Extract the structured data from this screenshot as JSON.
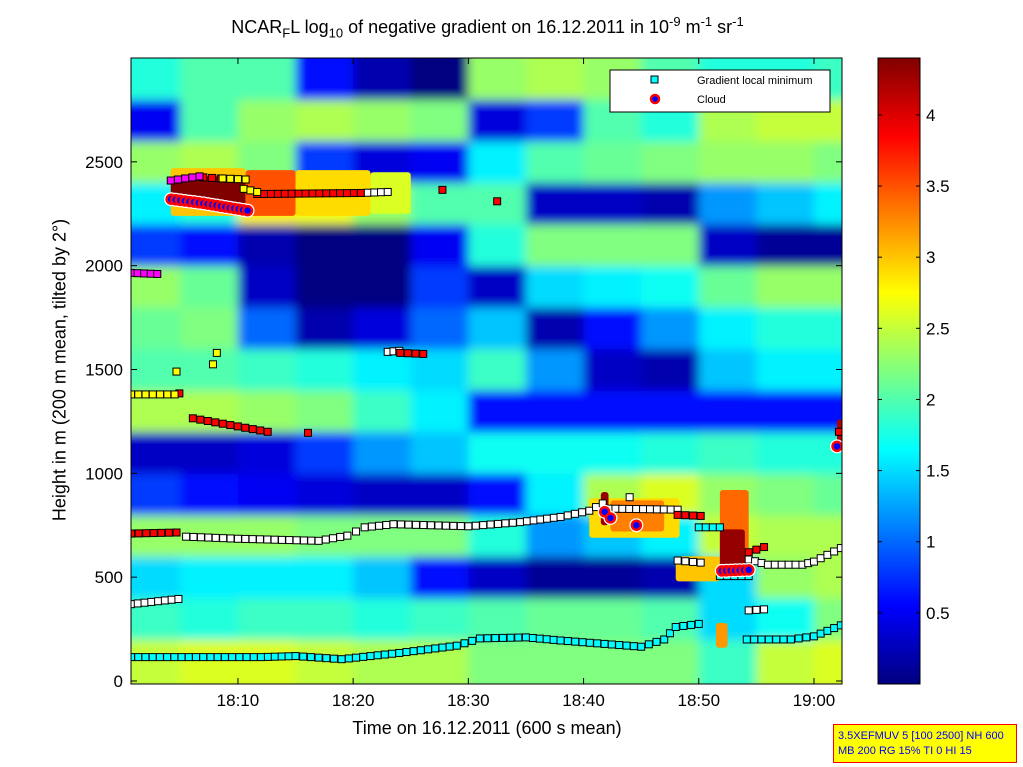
{
  "title": {
    "p1": "NCAR",
    "sub1": "F",
    "p2": "L log",
    "sub2": "10",
    "p3": " of negative gradient on 16.12.2011 in 10",
    "sup1": "-9",
    "p4": " m",
    "sup2": "-1",
    "p5": " sr",
    "sup3": "-1"
  },
  "info_box": {
    "line1": "3.5XEFMUV 5 [100 2500] NH 600",
    "line2": "MB 200 RG 15% TI 0 HI 15",
    "background": "#ffff00",
    "border": "#ff0000",
    "text_color": "#0000ff"
  },
  "chart_data": {
    "type": "heatmap",
    "colormap": "jet",
    "xlabel": "Time on 16.12.2011 (600 s mean)",
    "ylabel": "Height in m (200 m mean, tilted by 2°)",
    "xlim": [
      "18:00:43",
      "19:02:26"
    ],
    "ylim": [
      0,
      3000
    ],
    "clim": [
      0,
      4.4
    ],
    "xticks": [
      "18:10",
      "18:20",
      "18:30",
      "18:40",
      "18:50",
      "19:00"
    ],
    "yticks": [
      0,
      500,
      1000,
      1500,
      2000,
      2500
    ],
    "colorbar_ticks": [
      0.5,
      1,
      1.5,
      2,
      2.5,
      3,
      3.5,
      4
    ],
    "legend": {
      "position": "top-right",
      "entries": [
        {
          "label": "Gradient local minimum",
          "marker": "square",
          "color": "#00ffff"
        },
        {
          "label": "Cloud",
          "marker": "circle",
          "color": "#ff0000",
          "fill": "#0000ff"
        }
      ]
    },
    "heatmap": {
      "column_starts": [
        "18:00",
        "18:05",
        "18:10",
        "18:15",
        "18:20",
        "18:25",
        "18:30",
        "18:35",
        "18:40",
        "18:45",
        "18:50",
        "18:55",
        "19:00"
      ],
      "column_minutes": 5,
      "row_edges_m": [
        0,
        200,
        400,
        600,
        800,
        1000,
        1200,
        1400,
        1600,
        1800,
        2000,
        2200,
        2400,
        2600,
        2800,
        3000
      ],
      "values": [
        [
          2.5,
          1.9,
          1.5,
          2.3,
          0.8,
          0.3,
          2.4,
          2.0,
          2.1,
          2.3,
          0.8,
          1.6,
          2.3,
          0.5,
          1.8
        ],
        [
          2.6,
          1.8,
          1.6,
          2.3,
          0.6,
          0.3,
          2.4,
          2.0,
          2.2,
          2.1,
          0.6,
          1.8,
          2.4,
          2.0,
          2.0
        ],
        [
          2.6,
          1.9,
          1.6,
          2.3,
          0.5,
          0.4,
          2.3,
          1.9,
          1.0,
          0.3,
          0.2,
          2.8,
          2.2,
          2.3,
          2.0
        ],
        [
          2.5,
          1.9,
          1.6,
          2.2,
          0.4,
          0.8,
          2.2,
          1.8,
          0.2,
          0.0,
          0.0,
          2.7,
          0.8,
          2.4,
          0.6
        ],
        [
          2.4,
          1.8,
          1.4,
          2.2,
          0.3,
          1.2,
          1.9,
          1.6,
          0.4,
          0.0,
          0.0,
          2.3,
          0.4,
          2.3,
          0.2
        ],
        [
          2.4,
          1.9,
          0.6,
          2.2,
          0.3,
          1.4,
          1.6,
          1.5,
          1.0,
          0.8,
          0.5,
          2.0,
          0.5,
          2.2,
          0.0
        ],
        [
          2.2,
          2.0,
          0.3,
          1.8,
          0.6,
          1.7,
          0.6,
          1.9,
          1.4,
          0.3,
          1.8,
          2.0,
          1.6,
          0.4,
          2.3
        ],
        [
          2.2,
          2.1,
          0.1,
          1.2,
          1.6,
          1.7,
          0.6,
          1.2,
          0.2,
          1.5,
          2.2,
          0.3,
          2.0,
          0.8,
          2.4
        ],
        [
          2.2,
          2.1,
          0.1,
          1.4,
          2.4,
          1.7,
          0.6,
          0.3,
          0.6,
          1.6,
          2.2,
          0.3,
          2.1,
          2.0,
          2.3
        ],
        [
          2.2,
          2.0,
          0.2,
          1.6,
          2.6,
          1.8,
          0.6,
          0.2,
          1.2,
          1.7,
          2.2,
          0.2,
          2.2,
          1.8,
          2.0
        ],
        [
          1.9,
          1.5,
          1.5,
          2.5,
          2.3,
          1.9,
          0.6,
          1.4,
          1.6,
          2.1,
          0.3,
          1.2,
          2.3,
          2.4,
          1.8
        ],
        [
          2.5,
          1.7,
          2.3,
          2.4,
          2.2,
          1.8,
          0.6,
          1.6,
          1.8,
          2.3,
          0.1,
          1.4,
          2.3,
          2.5,
          1.8
        ],
        [
          2.6,
          2.2,
          2.4,
          2.4,
          2.1,
          1.8,
          0.6,
          1.6,
          1.8,
          2.3,
          0.1,
          1.6,
          2.2,
          2.5,
          1.9
        ]
      ],
      "patches": [
        {
          "t0": "18:04:10",
          "t1": "18:10:40",
          "h0": 2240,
          "h1": 2470,
          "value": 3.0
        },
        {
          "t0": "18:04:10",
          "t1": "18:10:40",
          "h0": 2290,
          "h1": 2430,
          "value": 4.4
        },
        {
          "t0": "18:10:40",
          "t1": "18:15:00",
          "h0": 2240,
          "h1": 2460,
          "value": 3.5
        },
        {
          "t0": "18:15:00",
          "t1": "18:21:30",
          "h0": 2240,
          "h1": 2460,
          "value": 2.9
        },
        {
          "t0": "18:21:30",
          "t1": "18:25:00",
          "h0": 2250,
          "h1": 2450,
          "value": 2.6
        },
        {
          "t0": "18:40:30",
          "t1": "18:48:20",
          "h0": 690,
          "h1": 880,
          "value": 2.9
        },
        {
          "t0": "18:42:20",
          "t1": "18:47:00",
          "h0": 720,
          "h1": 870,
          "value": 3.3
        },
        {
          "t0": "18:41:30",
          "t1": "18:42:10",
          "h0": 750,
          "h1": 910,
          "value": 4.3
        },
        {
          "t0": "18:48:00",
          "t1": "18:51:50",
          "h0": 480,
          "h1": 600,
          "value": 3.0
        },
        {
          "t0": "18:51:50",
          "t1": "18:54:20",
          "h0": 520,
          "h1": 920,
          "value": 3.4
        },
        {
          "t0": "18:51:50",
          "t1": "18:54:00",
          "h0": 540,
          "h1": 730,
          "value": 4.3
        },
        {
          "t0": "18:51:30",
          "t1": "18:52:30",
          "h0": 160,
          "h1": 280,
          "value": 3.2
        },
        {
          "t0": "19:02:00",
          "t1": "19:02:26",
          "h0": 1150,
          "h1": 1260,
          "value": 4.2
        }
      ]
    },
    "markers": [
      {
        "color": "#00ffff",
        "runs": [
          [
            [
              "18:00:43",
              115
            ],
            [
              "18:12:00",
              115
            ],
            [
              "18:15:00",
              120
            ],
            [
              "18:19:00",
              105
            ],
            [
              "18:24:00",
              135
            ],
            [
              "18:29:00",
              170
            ],
            [
              "18:31:00",
              205
            ],
            [
              "18:35:00",
              210
            ],
            [
              "18:38:00",
              195
            ],
            [
              "18:45:00",
              165
            ],
            [
              "18:47:00",
              200
            ],
            [
              "18:48:00",
              260
            ],
            [
              "18:50:00",
              275
            ]
          ],
          [
            [
              "18:54:10",
              200
            ],
            [
              "18:58:00",
              200
            ],
            [
              "19:00:00",
              215
            ],
            [
              "19:02:20",
              268
            ]
          ],
          [
            [
              "18:50:00",
              740
            ],
            [
              "18:51:50",
              740
            ]
          ],
          [
            [
              "18:51:50",
              505
            ],
            [
              "18:54:20",
              505
            ]
          ]
        ]
      },
      {
        "color": "#ffffff",
        "runs": [
          [
            [
              "18:00:43",
              370
            ],
            [
              "18:04:50",
              395
            ]
          ],
          [
            [
              "18:05:30",
              695
            ],
            [
              "18:10:00",
              685
            ],
            [
              "18:17:00",
              675
            ],
            [
              "18:19:30",
              700
            ],
            [
              "18:21:00",
              740
            ],
            [
              "18:23:30",
              755
            ],
            [
              "18:30:00",
              745
            ],
            [
              "18:34:30",
              765
            ],
            [
              "18:38:00",
              790
            ],
            [
              "18:40:30",
              820
            ],
            [
              "18:41:40",
              855
            ]
          ],
          [
            [
              "18:42:10",
              830
            ],
            [
              "18:48:10",
              825
            ]
          ],
          [
            [
              "18:44:00",
              885
            ]
          ],
          [
            [
              "18:48:10",
              580
            ],
            [
              "18:50:10",
              570
            ]
          ],
          [
            [
              "18:54:20",
              585
            ],
            [
              "18:56:00",
              560
            ],
            [
              "18:59:00",
              560
            ],
            [
              "19:00:00",
              575
            ],
            [
              "19:02:20",
              640
            ]
          ],
          [
            [
              "18:54:20",
              340
            ],
            [
              "18:55:40",
              345
            ]
          ],
          [
            [
              "18:23:00",
              1585
            ],
            [
              "18:24:00",
              1590
            ]
          ],
          [
            [
              "18:20:40",
              2350
            ],
            [
              "18:23:00",
              2355
            ]
          ]
        ]
      },
      {
        "color": "#ff0000",
        "runs": [
          [
            [
              "18:00:43",
              710
            ],
            [
              "18:04:40",
              715
            ]
          ],
          [
            [
              "18:07:00",
              2425
            ],
            [
              "18:08:30",
              2420
            ]
          ],
          [
            [
              "18:11:40",
              2345
            ],
            [
              "18:20:40",
              2350
            ]
          ],
          [
            [
              "18:27:45",
              2365
            ]
          ],
          [
            [
              "18:32:30",
              2310
            ]
          ],
          [
            [
              "18:04:55",
              1385
            ]
          ],
          [
            [
              "18:06:05",
              1265
            ],
            [
              "18:12:35",
              1200
            ]
          ],
          [
            [
              "18:16:05",
              1195
            ]
          ],
          [
            [
              "18:24:05",
              1580
            ],
            [
              "18:26:05",
              1575
            ]
          ],
          [
            [
              "18:48:10",
              800
            ],
            [
              "18:50:10",
              795
            ]
          ],
          [
            [
              "18:54:20",
              620
            ],
            [
              "18:55:40",
              645
            ]
          ],
          [
            [
              "19:02:10",
              1200
            ]
          ]
        ]
      },
      {
        "color": "#ffff00",
        "runs": [
          [
            [
              "18:00:43",
              1380
            ],
            [
              "18:04:30",
              1380
            ]
          ],
          [
            [
              "18:04:40",
              1490
            ]
          ],
          [
            [
              "18:07:50",
              1525
            ]
          ],
          [
            [
              "18:08:10",
              1580
            ]
          ],
          [
            [
              "18:08:40",
              2420
            ],
            [
              "18:10:40",
              2415
            ]
          ],
          [
            [
              "18:10:30",
              2370
            ],
            [
              "18:11:40",
              2355
            ]
          ]
        ]
      },
      {
        "color": "#ff00ff",
        "runs": [
          [
            [
              "18:00:43",
              1965
            ],
            [
              "18:03:00",
              1960
            ]
          ],
          [
            [
              "18:04:10",
              2410
            ],
            [
              "18:06:40",
              2430
            ]
          ]
        ]
      }
    ],
    "clouds": {
      "stroke": "#ff0000",
      "fill": "#0000ff",
      "runs": [
        [
          [
            "18:04:12",
            2320
          ],
          [
            "18:07:00",
            2300
          ],
          [
            "18:10:50",
            2265
          ]
        ],
        [
          [
            "18:41:50",
            815
          ]
        ],
        [
          [
            "18:42:20",
            785
          ]
        ],
        [
          [
            "18:44:35",
            750
          ]
        ],
        [
          [
            "18:52:00",
            530
          ],
          [
            "18:54:20",
            535
          ]
        ],
        [
          [
            "19:02:00",
            1130
          ]
        ]
      ]
    }
  }
}
